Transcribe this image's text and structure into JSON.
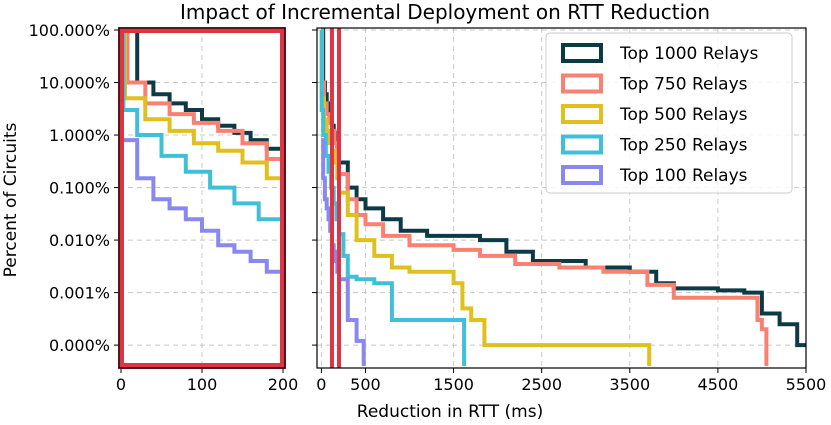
{
  "chart_data": {
    "type": "line",
    "title": "Impact of Incremental Deployment on RTT Reduction",
    "xlabel": "Reduction in RTT (ms)",
    "ylabel": "Percent of Circuits",
    "yscale": "log",
    "ytick_values": [
      100,
      10,
      1,
      0.1,
      0.01,
      0.001,
      0.0001
    ],
    "ytick_labels": [
      "100.000%",
      "10.000%",
      "1.000%",
      "0.100%",
      "0.010%",
      "0.001%",
      "0.000%"
    ],
    "legend_position": "upper right",
    "highlight_color": "#dc3545",
    "panels": [
      {
        "name": "zoom",
        "xlim": [
          0,
          200
        ],
        "xticks": [
          0,
          100,
          200
        ],
        "xtick_labels": [
          "0",
          "100",
          "200"
        ],
        "highlighted_region": true
      },
      {
        "name": "full",
        "xlim": [
          -50,
          5500
        ],
        "xticks": [
          0,
          500,
          1500,
          2500,
          3500,
          4500,
          5500
        ],
        "xtick_labels": [
          "0",
          "500",
          "1500",
          "2500",
          "3500",
          "4500",
          "5500"
        ],
        "highlight_x": [
          120,
          200
        ]
      }
    ],
    "series": [
      {
        "name": "Top 1000 Relays",
        "color": "#0d3b45",
        "points": [
          [
            0,
            100
          ],
          [
            20,
            100
          ],
          [
            20,
            10
          ],
          [
            40,
            6
          ],
          [
            60,
            4
          ],
          [
            80,
            3
          ],
          [
            100,
            2
          ],
          [
            120,
            1.5
          ],
          [
            140,
            1.1
          ],
          [
            160,
            0.8
          ],
          [
            180,
            0.55
          ],
          [
            200,
            0.3
          ],
          [
            300,
            0.1
          ],
          [
            400,
            0.06
          ],
          [
            500,
            0.04
          ],
          [
            700,
            0.025
          ],
          [
            900,
            0.015
          ],
          [
            1200,
            0.012
          ],
          [
            1500,
            0.012
          ],
          [
            1800,
            0.01
          ],
          [
            2100,
            0.006
          ],
          [
            2400,
            0.004
          ],
          [
            3000,
            0.003
          ],
          [
            3500,
            0.0025
          ],
          [
            3800,
            0.0015
          ],
          [
            4000,
            0.0012
          ],
          [
            4500,
            0.0011
          ],
          [
            4800,
            0.001
          ],
          [
            5000,
            0.0004
          ],
          [
            5200,
            0.00025
          ],
          [
            5400,
            0.0001
          ],
          [
            5500,
            0.0001
          ]
        ]
      },
      {
        "name": "Top 750 Relays",
        "color": "#fa8072",
        "points": [
          [
            0,
            100
          ],
          [
            8,
            100
          ],
          [
            8,
            10
          ],
          [
            30,
            4
          ],
          [
            60,
            2.5
          ],
          [
            90,
            1.7
          ],
          [
            120,
            1.2
          ],
          [
            150,
            0.7
          ],
          [
            180,
            0.35
          ],
          [
            200,
            0.18
          ],
          [
            300,
            0.06
          ],
          [
            400,
            0.03
          ],
          [
            500,
            0.02
          ],
          [
            700,
            0.012
          ],
          [
            1000,
            0.008
          ],
          [
            1500,
            0.0065
          ],
          [
            1800,
            0.005
          ],
          [
            2200,
            0.0035
          ],
          [
            2700,
            0.003
          ],
          [
            3200,
            0.0025
          ],
          [
            3700,
            0.0014
          ],
          [
            4000,
            0.0008
          ],
          [
            4800,
            0.0008
          ],
          [
            4950,
            0.0003
          ],
          [
            5000,
            0.0002
          ],
          [
            5050,
            4e-05
          ]
        ]
      },
      {
        "name": "Top 500 Relays",
        "color": "#e0c01e",
        "points": [
          [
            0,
            100
          ],
          [
            5,
            100
          ],
          [
            5,
            5
          ],
          [
            30,
            2
          ],
          [
            60,
            1.2
          ],
          [
            90,
            0.7
          ],
          [
            120,
            0.5
          ],
          [
            150,
            0.3
          ],
          [
            180,
            0.15
          ],
          [
            200,
            0.08
          ],
          [
            300,
            0.03
          ],
          [
            400,
            0.01
          ],
          [
            600,
            0.005
          ],
          [
            800,
            0.003
          ],
          [
            1000,
            0.0025
          ],
          [
            1500,
            0.0015
          ],
          [
            1600,
            0.0005
          ],
          [
            1700,
            0.0003
          ],
          [
            1850,
            0.0001
          ],
          [
            3700,
            0.0001
          ],
          [
            3720,
            4e-05
          ]
        ]
      },
      {
        "name": "Top 250 Relays",
        "color": "#40c0d8",
        "points": [
          [
            0,
            100
          ],
          [
            3,
            100
          ],
          [
            3,
            3
          ],
          [
            20,
            1
          ],
          [
            50,
            0.4
          ],
          [
            80,
            0.2
          ],
          [
            110,
            0.1
          ],
          [
            140,
            0.05
          ],
          [
            170,
            0.025
          ],
          [
            200,
            0.013
          ],
          [
            250,
            0.005
          ],
          [
            300,
            0.002
          ],
          [
            400,
            0.0018
          ],
          [
            600,
            0.0015
          ],
          [
            800,
            0.0003
          ],
          [
            1200,
            0.0003
          ],
          [
            1600,
            0.0003
          ],
          [
            1620,
            4e-05
          ]
        ]
      },
      {
        "name": "Top 100 Relays",
        "color": "#8888ee",
        "points": [
          [
            0,
            0.8
          ],
          [
            20,
            0.15
          ],
          [
            40,
            0.06
          ],
          [
            60,
            0.04
          ],
          [
            80,
            0.025
          ],
          [
            100,
            0.015
          ],
          [
            120,
            0.008
          ],
          [
            140,
            0.006
          ],
          [
            160,
            0.004
          ],
          [
            180,
            0.0025
          ],
          [
            200,
            0.0018
          ],
          [
            300,
            0.0003
          ],
          [
            400,
            0.00012
          ],
          [
            480,
            4e-05
          ]
        ]
      }
    ]
  }
}
